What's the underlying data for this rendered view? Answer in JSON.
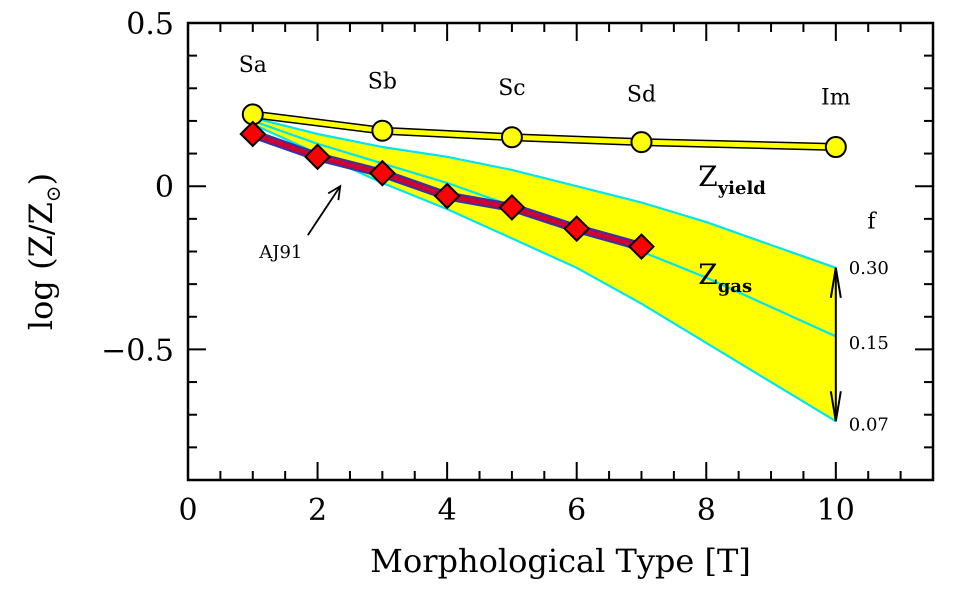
{
  "chart_data": {
    "type": "line",
    "xlabel": "Morphological Type [T]",
    "ylabel": "log (Z/Z",
    "ylabel_symbol": "⊙",
    "ylabel_close": ")",
    "xlim": [
      0,
      11.5
    ],
    "ylim": [
      -0.9,
      0.5
    ],
    "x_ticks": [
      0,
      2,
      4,
      6,
      8,
      10
    ],
    "x_tick_labels": [
      "0",
      "2",
      "4",
      "6",
      "8",
      "10"
    ],
    "y_ticks": [
      0.5,
      0,
      -0.5
    ],
    "y_tick_labels": [
      "0.5",
      "0",
      "−0.5"
    ],
    "grid": false,
    "series": [
      {
        "key": "yield",
        "color": "#ffff00",
        "line_color": "#000000",
        "marker": "circle",
        "x": [
          1,
          3,
          5,
          7,
          10
        ],
        "y": [
          0.22,
          0.17,
          0.15,
          0.135,
          0.12
        ]
      },
      {
        "key": "AJ91",
        "color": "#ff0000",
        "line_color": "#cc0033",
        "outline_color": "#3333aa",
        "marker": "diamond",
        "x": [
          1,
          2,
          3,
          4,
          5,
          6,
          7
        ],
        "y": [
          0.16,
          0.09,
          0.04,
          -0.03,
          -0.065,
          -0.13,
          -0.185
        ]
      }
    ],
    "band": {
      "color": "#ffff00",
      "edge_color": "#00e5ee",
      "curves": [
        {
          "f": 0.3,
          "x": [
            1,
            2,
            3,
            4,
            5,
            6,
            7,
            8,
            9,
            10
          ],
          "y": [
            0.21,
            0.16,
            0.12,
            0.09,
            0.05,
            0.0,
            -0.05,
            -0.11,
            -0.18,
            -0.25
          ]
        },
        {
          "f": 0.15,
          "x": [
            1,
            2,
            3,
            4,
            5,
            6,
            7,
            8,
            9,
            10
          ],
          "y": [
            0.2,
            0.13,
            0.07,
            0.01,
            -0.06,
            -0.13,
            -0.2,
            -0.28,
            -0.37,
            -0.46
          ]
        },
        {
          "f": 0.07,
          "x": [
            1,
            2,
            3,
            4,
            5,
            6,
            7,
            8,
            9,
            10
          ],
          "y": [
            0.19,
            0.1,
            0.01,
            -0.07,
            -0.16,
            -0.25,
            -0.36,
            -0.48,
            -0.6,
            -0.72
          ]
        }
      ]
    },
    "type_labels": [
      {
        "text": "Sa",
        "x": 1,
        "y": 0.35
      },
      {
        "text": "Sb",
        "x": 3,
        "y": 0.3
      },
      {
        "text": "Sc",
        "x": 5,
        "y": 0.28
      },
      {
        "text": "Sd",
        "x": 7,
        "y": 0.26
      },
      {
        "text": "Im",
        "x": 10,
        "y": 0.25
      }
    ],
    "annotations": {
      "z_yield": {
        "main": "Z",
        "sub": "yield",
        "x": 8.0,
        "y": 0.0
      },
      "z_gas": {
        "main": "Z",
        "sub": "gas",
        "x": 8.0,
        "y": -0.3
      },
      "aj91": {
        "text": "AJ91",
        "x": 1.1,
        "y": -0.22,
        "arrow_from": [
          1.85,
          -0.15
        ],
        "arrow_to": [
          2.35,
          0.0
        ]
      },
      "f_header": {
        "text": "f",
        "x": 10.55,
        "y": -0.13
      },
      "f_values": [
        {
          "text": "0.30",
          "x": 10.2,
          "y": -0.25
        },
        {
          "text": "0.15",
          "x": 10.2,
          "y": -0.48
        },
        {
          "text": "0.07",
          "x": 10.2,
          "y": -0.73
        }
      ],
      "f_arrow": {
        "x": 10.0,
        "y_top": -0.25,
        "y_bottom": -0.72
      }
    }
  }
}
